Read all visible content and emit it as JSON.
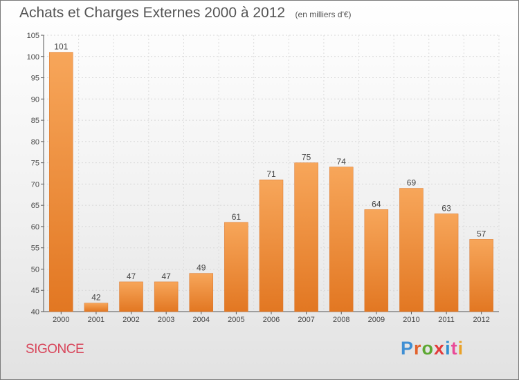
{
  "title": "Achats et Charges Externes 2000 à 2012",
  "unit": "(en milliers d'€)",
  "commune": "SIGONCE",
  "logo": {
    "text": "Proxiti",
    "letter_colors": [
      "#3f8fd4",
      "#e2622c",
      "#5da832",
      "#e23b3b",
      "#2f8fd0",
      "#e94a98",
      "#e9a127"
    ]
  },
  "colors": {
    "bar_top": "#f7a65a",
    "bar_bottom": "#e27722",
    "axis": "#555555",
    "label": "#444444"
  },
  "chart_data": {
    "type": "bar",
    "categories": [
      "2000",
      "2001",
      "2002",
      "2003",
      "2004",
      "2005",
      "2006",
      "2007",
      "2008",
      "2009",
      "2010",
      "2011",
      "2012"
    ],
    "values": [
      101,
      42,
      47,
      47,
      49,
      61,
      71,
      75,
      74,
      64,
      69,
      63,
      57
    ],
    "ylim": [
      40,
      105
    ],
    "yticks": [
      40,
      45,
      50,
      55,
      60,
      65,
      70,
      75,
      80,
      85,
      90,
      95,
      100,
      105
    ],
    "grid": true,
    "legend": "none"
  }
}
